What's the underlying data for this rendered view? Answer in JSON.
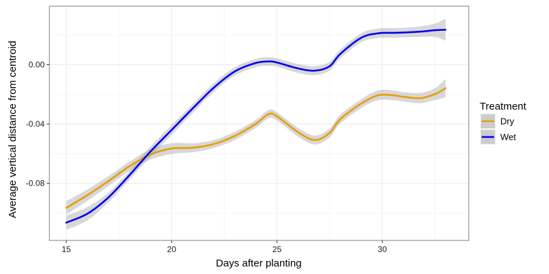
{
  "chart_data": {
    "type": "line",
    "title": "",
    "xlabel": "Days after planting",
    "ylabel": "Average vertical distance from centroid",
    "xlim": [
      14.2,
      34.1
    ],
    "ylim": [
      -0.1185,
      0.0395
    ],
    "x_ticks": [
      15,
      20,
      25,
      30
    ],
    "y_ticks": [
      -0.08,
      -0.04,
      0.0
    ],
    "x_tick_labels": [
      "15",
      "20",
      "25",
      "30"
    ],
    "y_tick_labels": [
      "-0.08",
      "-0.04",
      "0.00"
    ],
    "grid": true,
    "legend": {
      "title": "Treatment",
      "placement": "right"
    },
    "confidence_band": true,
    "series": [
      {
        "name": "Dry",
        "color": "#E69F00",
        "x": [
          15,
          16,
          17,
          18,
          19,
          20,
          21,
          22,
          23,
          24,
          24.6,
          25,
          26,
          26.8,
          27.5,
          28,
          29,
          29.8,
          30.5,
          31,
          31.8,
          32.5,
          33
        ],
        "y": [
          -0.0965,
          -0.088,
          -0.0785,
          -0.0685,
          -0.0605,
          -0.0565,
          -0.056,
          -0.0535,
          -0.048,
          -0.0398,
          -0.0333,
          -0.0348,
          -0.0455,
          -0.0508,
          -0.046,
          -0.0368,
          -0.0262,
          -0.0206,
          -0.0206,
          -0.0216,
          -0.0225,
          -0.0198,
          -0.0158
        ],
        "band": [
          0.0045,
          0.0038,
          0.0033,
          0.0031,
          0.0035,
          0.0036,
          0.003,
          0.0027,
          0.0027,
          0.0027,
          0.0028,
          0.0027,
          0.003,
          0.003,
          0.003,
          0.003,
          0.003,
          0.0033,
          0.0033,
          0.0032,
          0.0035,
          0.004,
          0.0062
        ]
      },
      {
        "name": "Wet",
        "color": "#0000EE",
        "x": [
          15,
          16,
          17,
          18,
          19,
          20,
          21,
          22,
          23,
          24,
          24.6,
          25,
          26,
          26.8,
          27.5,
          28,
          29,
          29.8,
          30.5,
          31,
          31.8,
          32.5,
          33
        ],
        "y": [
          -0.1065,
          -0.1005,
          -0.0895,
          -0.0745,
          -0.0585,
          -0.044,
          -0.0295,
          -0.0155,
          -0.0045,
          0.0012,
          0.0022,
          0.0015,
          -0.0025,
          -0.004,
          -0.001,
          0.0072,
          0.0182,
          0.0212,
          0.0215,
          0.0217,
          0.0223,
          0.0233,
          0.0236
        ],
        "band": [
          0.0048,
          0.0045,
          0.0033,
          0.003,
          0.0034,
          0.0033,
          0.003,
          0.0029,
          0.0028,
          0.0028,
          0.0028,
          0.0028,
          0.003,
          0.003,
          0.003,
          0.003,
          0.003,
          0.0032,
          0.0033,
          0.0032,
          0.0036,
          0.0045,
          0.0075
        ]
      }
    ]
  }
}
